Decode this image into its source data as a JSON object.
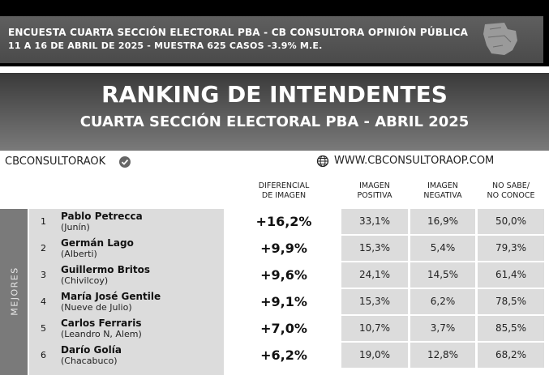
{
  "header": {
    "line1": "ENCUESTA CUARTA SECCIÓN ELECTORAL PBA - CB CONSULTORA OPINIÓN PÚBLICA",
    "line2": "11 A 16 DE ABRIL  DE 2025 - MUESTRA 625 CASOS -3.9% M.E."
  },
  "title": {
    "main": "RANKING DE INTENDENTES",
    "sub": "CUARTA SECCIÓN ELECTORAL PBA - ABRIL 2025"
  },
  "brand": {
    "handle": "CBCONSULTORAOK",
    "website": "WWW.CBCONSULTORAOP.COM"
  },
  "columns": {
    "diff": [
      "DIFERENCIAL",
      "DE IMAGEN"
    ],
    "pos": [
      "IMAGEN",
      "POSITIVA"
    ],
    "neg": [
      "IMAGEN",
      "NEGATIVA"
    ],
    "ns": [
      "NO SABE/",
      "NO CONOCE"
    ]
  },
  "side_label": "MEJORES",
  "rows": [
    {
      "rank": "1",
      "name": "Pablo Petrecca",
      "district": "(Junín)",
      "diff": "+16,2%",
      "pos": "33,1%",
      "neg": "16,9%",
      "ns": "50,0%"
    },
    {
      "rank": "2",
      "name": "Germán Lago",
      "district": "(Alberti)",
      "diff": "+9,9%",
      "pos": "15,3%",
      "neg": "5,4%",
      "ns": "79,3%"
    },
    {
      "rank": "3",
      "name": "Guillermo Britos",
      "district": "(Chivilcoy)",
      "diff": "+9,6%",
      "pos": "24,1%",
      "neg": "14,5%",
      "ns": "61,4%"
    },
    {
      "rank": "4",
      "name": "María José Gentile",
      "district": "(Nueve de Julio)",
      "diff": "+9,1%",
      "pos": "15,3%",
      "neg": "6,2%",
      "ns": "78,5%"
    },
    {
      "rank": "5",
      "name": "Carlos Ferraris",
      "district": "(Leandro N, Alem)",
      "diff": "+7,0%",
      "pos": "10,7%",
      "neg": "3,7%",
      "ns": "85,5%"
    },
    {
      "rank": "6",
      "name": "Darío Golía",
      "district": "(Chacabuco)",
      "diff": "+6,2%",
      "pos": "19,0%",
      "neg": "12,8%",
      "ns": "68,2%"
    }
  ]
}
